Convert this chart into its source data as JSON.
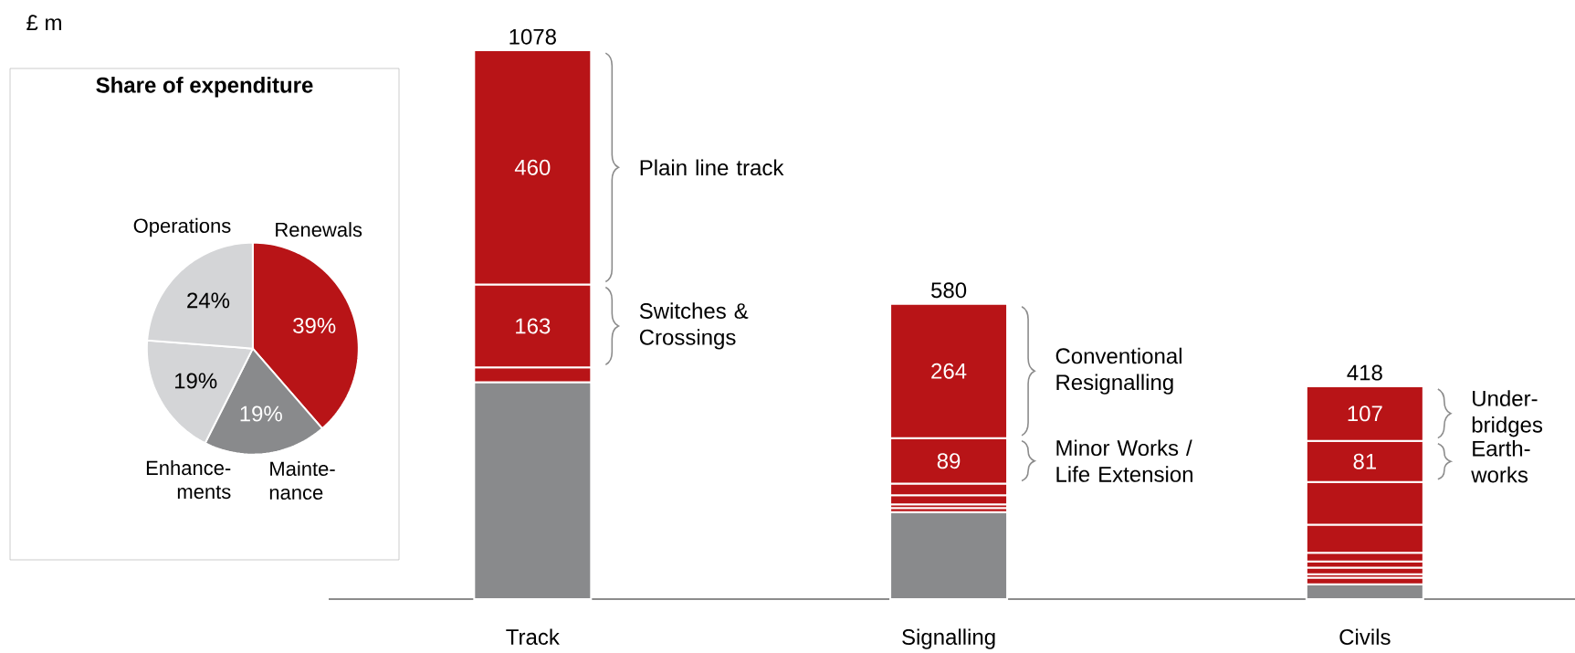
{
  "chart_data": [
    {
      "type": "pie",
      "title": "Share of expenditure",
      "categories": [
        "Renewals",
        "Mainte-nance",
        "Enhance-ments",
        "Operations"
      ],
      "values": [
        39,
        19,
        19,
        24
      ],
      "colors": [
        "#b81417",
        "#898a8c",
        "#d4d5d7",
        "#d4d5d7"
      ],
      "value_labels": [
        "39%",
        "19%",
        "19%",
        "24%"
      ]
    },
    {
      "type": "bar",
      "stacked": true,
      "ylabel": "£ m",
      "categories": [
        "Track",
        "Signalling",
        "Civils"
      ],
      "tick_labels": "x",
      "series": [
        {
          "color": "#898a8c",
          "values": [
            426,
            171,
            29
          ]
        },
        {
          "color": "#b81417",
          "values": [
            29,
            8,
            13
          ]
        },
        {
          "color": "#b81417",
          "values": [
            null,
            7,
            7
          ]
        },
        {
          "color": "#b81417",
          "values": [
            null,
            18,
            13
          ]
        },
        {
          "color": "#b81417",
          "values": [
            null,
            23,
            12
          ]
        },
        {
          "color": "#b81417",
          "values": [
            null,
            null,
            17
          ]
        },
        {
          "color": "#b81417",
          "values": [
            null,
            null,
            55
          ]
        },
        {
          "color": "#b81417",
          "values": [
            null,
            null,
            84
          ]
        },
        {
          "color": "#b81417",
          "values": [
            163,
            89,
            81
          ],
          "value_labels": [
            "163",
            "89",
            "81"
          ]
        },
        {
          "color": "#b81417",
          "values": [
            460,
            264,
            107
          ],
          "value_labels": [
            "460",
            "264",
            "107"
          ]
        }
      ],
      "totals": [
        "1078",
        "580",
        "418"
      ],
      "annotations": [
        "Plain line track",
        "Switches & Crossings",
        "Conventional Resignalling",
        "Minor Works / Life Extension",
        "Under-bridges",
        "Earth-works"
      ]
    }
  ]
}
